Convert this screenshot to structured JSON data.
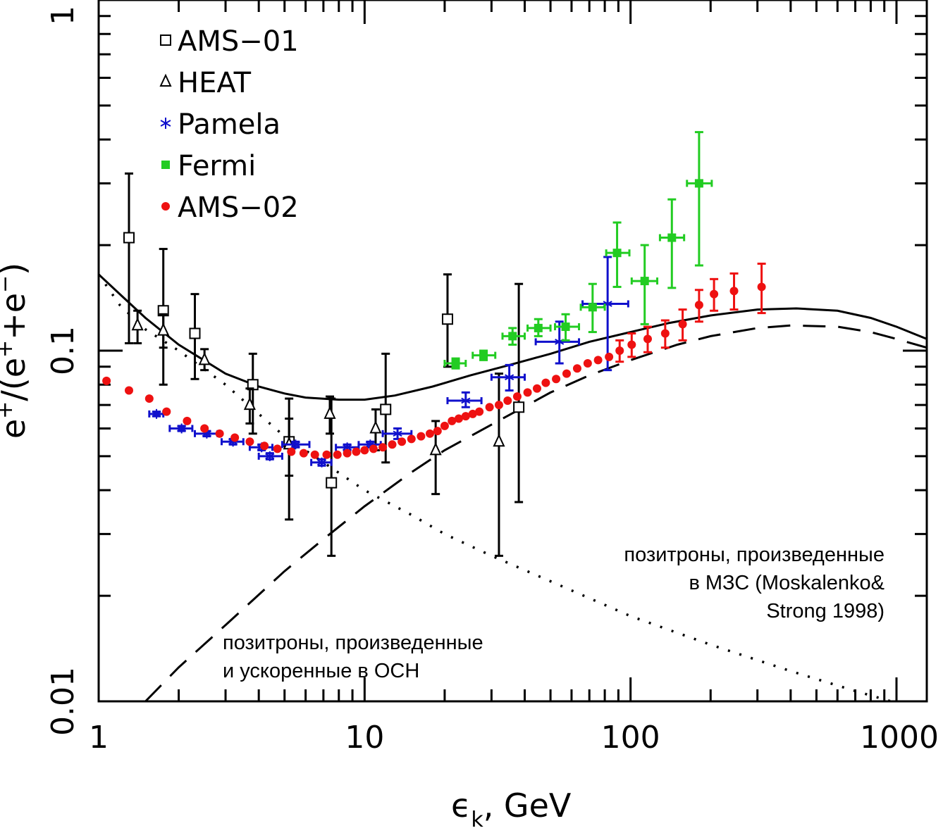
{
  "chart_data": {
    "type": "scatter",
    "xlabel": {
      "main": "ϵ",
      "sub": "k",
      "rest": ",  GeV"
    },
    "ylabel": {
      "a": "e",
      "sa": "+",
      "b": "/(e",
      "sb": "+",
      "c": "+e",
      "sc": "−",
      "d": ")"
    },
    "xscale": "log",
    "yscale": "log",
    "xlim": [
      1,
      1300
    ],
    "ylim": [
      0.01,
      1
    ],
    "x_tick_labels": [
      "1",
      "10",
      "100",
      "1000"
    ],
    "y_tick_labels": [
      "0.01",
      "0.1",
      "1"
    ],
    "legend_position": "top-left",
    "series": [
      {
        "name": "AMS−01",
        "marker": "open-square",
        "color": "#000000",
        "points": [
          {
            "x": 1.3,
            "y": 0.21,
            "ylo": 0.105,
            "yhi": 0.32
          },
          {
            "x": 1.75,
            "y": 0.13,
            "ylo": 0.08,
            "yhi": 0.195
          },
          {
            "x": 2.3,
            "y": 0.112,
            "ylo": 0.083,
            "yhi": 0.145
          },
          {
            "x": 3.8,
            "y": 0.08,
            "ylo": 0.058,
            "yhi": 0.098
          },
          {
            "x": 5.2,
            "y": 0.055,
            "ylo": 0.033,
            "yhi": 0.073
          },
          {
            "x": 7.5,
            "y": 0.042,
            "ylo": 0.026,
            "yhi": 0.073
          },
          {
            "x": 12,
            "y": 0.068,
            "ylo": 0.048,
            "yhi": 0.098
          },
          {
            "x": 20.5,
            "y": 0.123,
            "ylo": 0.09,
            "yhi": 0.165
          },
          {
            "x": 38,
            "y": 0.069,
            "ylo": 0.037,
            "yhi": 0.155
          }
        ]
      },
      {
        "name": "HEAT",
        "marker": "open-triangle",
        "color": "#000000",
        "points": [
          {
            "x": 1.4,
            "y": 0.118,
            "ylo": 0.105,
            "yhi": 0.13
          },
          {
            "x": 1.75,
            "y": 0.114,
            "ylo": 0.102,
            "yhi": 0.127
          },
          {
            "x": 2.5,
            "y": 0.094,
            "ylo": 0.088,
            "yhi": 0.101
          },
          {
            "x": 3.7,
            "y": 0.07,
            "ylo": 0.062,
            "yhi": 0.078
          },
          {
            "x": 5.2,
            "y": 0.054,
            "ylo": 0.044,
            "yhi": 0.064
          },
          {
            "x": 7.4,
            "y": 0.066,
            "ylo": 0.058,
            "yhi": 0.074
          },
          {
            "x": 11,
            "y": 0.06,
            "ylo": 0.052,
            "yhi": 0.068
          },
          {
            "x": 18.5,
            "y": 0.052,
            "ylo": 0.039,
            "yhi": 0.063
          },
          {
            "x": 32,
            "y": 0.055,
            "ylo": 0.026,
            "yhi": 0.086
          }
        ]
      },
      {
        "name": "Pamela",
        "marker": "asterisk",
        "color": "#1010cc",
        "points": [
          {
            "x": 1.65,
            "y": 0.066,
            "xlo": 1.55,
            "xhi": 1.75,
            "ylo": 0.065,
            "yhi": 0.067
          },
          {
            "x": 2.05,
            "y": 0.06,
            "xlo": 1.85,
            "xhi": 2.25,
            "ylo": 0.059,
            "yhi": 0.061
          },
          {
            "x": 2.55,
            "y": 0.058,
            "xlo": 2.3,
            "xhi": 2.8,
            "ylo": 0.057,
            "yhi": 0.059
          },
          {
            "x": 3.2,
            "y": 0.055,
            "xlo": 2.9,
            "xhi": 3.5,
            "ylo": 0.054,
            "yhi": 0.056
          },
          {
            "x": 4.1,
            "y": 0.053,
            "xlo": 3.7,
            "xhi": 4.5,
            "ylo": 0.052,
            "yhi": 0.054
          },
          {
            "x": 4.4,
            "y": 0.05,
            "xlo": 4.0,
            "xhi": 4.9,
            "ylo": 0.049,
            "yhi": 0.051
          },
          {
            "x": 5.5,
            "y": 0.054,
            "xlo": 4.9,
            "xhi": 6.2,
            "ylo": 0.053,
            "yhi": 0.055
          },
          {
            "x": 6.9,
            "y": 0.048,
            "xlo": 6.3,
            "xhi": 7.5,
            "ylo": 0.047,
            "yhi": 0.049
          },
          {
            "x": 8.6,
            "y": 0.053,
            "xlo": 7.8,
            "xhi": 9.5,
            "ylo": 0.052,
            "yhi": 0.054
          },
          {
            "x": 10.5,
            "y": 0.054,
            "xlo": 9.5,
            "xhi": 11.5,
            "ylo": 0.053,
            "yhi": 0.055
          },
          {
            "x": 13.3,
            "y": 0.058,
            "xlo": 11.7,
            "xhi": 15,
            "ylo": 0.056,
            "yhi": 0.06
          },
          {
            "x": 24,
            "y": 0.072,
            "xlo": 20.5,
            "xhi": 27.5,
            "ylo": 0.069,
            "yhi": 0.076
          },
          {
            "x": 35,
            "y": 0.084,
            "xlo": 30,
            "xhi": 40,
            "ylo": 0.077,
            "yhi": 0.091
          },
          {
            "x": 54,
            "y": 0.106,
            "xlo": 44,
            "xhi": 64,
            "ylo": 0.092,
            "yhi": 0.121
          },
          {
            "x": 82,
            "y": 0.136,
            "xlo": 66,
            "xhi": 98,
            "ylo": 0.088,
            "yhi": 0.185
          }
        ]
      },
      {
        "name": "Fermi",
        "marker": "filled-square",
        "color": "#22cc22",
        "points": [
          {
            "x": 22,
            "y": 0.092,
            "xlo": 20,
            "xhi": 24,
            "ylo": 0.089,
            "yhi": 0.095
          },
          {
            "x": 28,
            "y": 0.097,
            "xlo": 25.5,
            "xhi": 31,
            "ylo": 0.094,
            "yhi": 0.1
          },
          {
            "x": 36,
            "y": 0.11,
            "xlo": 33,
            "xhi": 40,
            "ylo": 0.104,
            "yhi": 0.116
          },
          {
            "x": 45,
            "y": 0.116,
            "xlo": 41,
            "xhi": 50,
            "ylo": 0.11,
            "yhi": 0.123
          },
          {
            "x": 57,
            "y": 0.117,
            "xlo": 52,
            "xhi": 64,
            "ylo": 0.107,
            "yhi": 0.127
          },
          {
            "x": 72,
            "y": 0.133,
            "xlo": 65,
            "xhi": 80,
            "ylo": 0.113,
            "yhi": 0.155
          },
          {
            "x": 89,
            "y": 0.19,
            "xlo": 81,
            "xhi": 99,
            "ylo": 0.152,
            "yhi": 0.232
          },
          {
            "x": 113,
            "y": 0.158,
            "xlo": 101,
            "xhi": 126,
            "ylo": 0.119,
            "yhi": 0.2
          },
          {
            "x": 143,
            "y": 0.21,
            "xlo": 129,
            "xhi": 159,
            "ylo": 0.151,
            "yhi": 0.27
          },
          {
            "x": 181,
            "y": 0.3,
            "xlo": 163,
            "xhi": 202,
            "ylo": 0.175,
            "yhi": 0.42
          }
        ]
      },
      {
        "name": "AMS−02",
        "marker": "filled-circle",
        "color": "#ee1111",
        "points": [
          {
            "x": 1.07,
            "y": 0.082
          },
          {
            "x": 1.3,
            "y": 0.077
          },
          {
            "x": 1.55,
            "y": 0.073
          },
          {
            "x": 1.8,
            "y": 0.067
          },
          {
            "x": 2.15,
            "y": 0.063
          },
          {
            "x": 2.5,
            "y": 0.06
          },
          {
            "x": 2.85,
            "y": 0.058
          },
          {
            "x": 3.25,
            "y": 0.0565
          },
          {
            "x": 3.7,
            "y": 0.055
          },
          {
            "x": 4.2,
            "y": 0.0535
          },
          {
            "x": 4.7,
            "y": 0.0525
          },
          {
            "x": 5.3,
            "y": 0.0515
          },
          {
            "x": 5.9,
            "y": 0.051
          },
          {
            "x": 6.5,
            "y": 0.0505
          },
          {
            "x": 7.2,
            "y": 0.0505
          },
          {
            "x": 7.9,
            "y": 0.0505
          },
          {
            "x": 8.6,
            "y": 0.051
          },
          {
            "x": 9.3,
            "y": 0.0515
          },
          {
            "x": 10.0,
            "y": 0.052
          },
          {
            "x": 10.8,
            "y": 0.0525
          },
          {
            "x": 11.7,
            "y": 0.053
          },
          {
            "x": 12.7,
            "y": 0.054
          },
          {
            "x": 13.8,
            "y": 0.055
          },
          {
            "x": 15.0,
            "y": 0.056
          },
          {
            "x": 16.3,
            "y": 0.057
          },
          {
            "x": 17.6,
            "y": 0.058
          },
          {
            "x": 18.8,
            "y": 0.059
          },
          {
            "x": 20.0,
            "y": 0.061
          },
          {
            "x": 21.3,
            "y": 0.063
          },
          {
            "x": 22.6,
            "y": 0.064
          },
          {
            "x": 24.0,
            "y": 0.065
          },
          {
            "x": 25.5,
            "y": 0.066
          },
          {
            "x": 27.0,
            "y": 0.067
          },
          {
            "x": 29.5,
            "y": 0.069
          },
          {
            "x": 32.0,
            "y": 0.07
          },
          {
            "x": 34.5,
            "y": 0.072
          },
          {
            "x": 37.5,
            "y": 0.074
          },
          {
            "x": 41.0,
            "y": 0.076
          },
          {
            "x": 44.5,
            "y": 0.078
          },
          {
            "x": 48.0,
            "y": 0.081
          },
          {
            "x": 52.5,
            "y": 0.083
          },
          {
            "x": 57.5,
            "y": 0.086
          },
          {
            "x": 63.0,
            "y": 0.089
          },
          {
            "x": 69.0,
            "y": 0.092
          },
          {
            "x": 75.5,
            "y": 0.094
          },
          {
            "x": 83.0,
            "y": 0.096
          },
          {
            "x": 91.0,
            "y": 0.1,
            "ylo": 0.093,
            "yhi": 0.107
          },
          {
            "x": 101,
            "y": 0.104,
            "ylo": 0.096,
            "yhi": 0.112
          },
          {
            "x": 116,
            "y": 0.108,
            "ylo": 0.099,
            "yhi": 0.117
          },
          {
            "x": 135,
            "y": 0.112,
            "ylo": 0.102,
            "yhi": 0.122
          },
          {
            "x": 157,
            "y": 0.119,
            "ylo": 0.107,
            "yhi": 0.131
          },
          {
            "x": 181,
            "y": 0.135,
            "ylo": 0.121,
            "yhi": 0.149
          },
          {
            "x": 206,
            "y": 0.145,
            "ylo": 0.13,
            "yhi": 0.16
          },
          {
            "x": 245,
            "y": 0.148,
            "ylo": 0.131,
            "yhi": 0.166
          },
          {
            "x": 311,
            "y": 0.152,
            "ylo": 0.128,
            "yhi": 0.177
          }
        ]
      }
    ],
    "curves": [
      {
        "style": "solid",
        "points": [
          [
            1,
            0.165
          ],
          [
            1.2,
            0.145
          ],
          [
            1.5,
            0.124
          ],
          [
            2,
            0.104
          ],
          [
            3,
            0.086
          ],
          [
            4,
            0.079
          ],
          [
            5,
            0.0755
          ],
          [
            6,
            0.0735
          ],
          [
            8,
            0.0725
          ],
          [
            10,
            0.0725
          ],
          [
            13,
            0.0745
          ],
          [
            18,
            0.079
          ],
          [
            25,
            0.085
          ],
          [
            35,
            0.091
          ],
          [
            50,
            0.098
          ],
          [
            70,
            0.106
          ],
          [
            100,
            0.113
          ],
          [
            140,
            0.12
          ],
          [
            200,
            0.126
          ],
          [
            300,
            0.131
          ],
          [
            420,
            0.132
          ],
          [
            600,
            0.13
          ],
          [
            800,
            0.124
          ],
          [
            1000,
            0.117
          ],
          [
            1300,
            0.108
          ]
        ]
      },
      {
        "style": "dashed",
        "points": [
          [
            1.5,
            0.01
          ],
          [
            2,
            0.0125
          ],
          [
            3,
            0.0165
          ],
          [
            5,
            0.0235
          ],
          [
            7,
            0.029
          ],
          [
            10,
            0.036
          ],
          [
            15,
            0.045
          ],
          [
            20,
            0.052
          ],
          [
            30,
            0.0615
          ],
          [
            50,
            0.076
          ],
          [
            70,
            0.085
          ],
          [
            100,
            0.094
          ],
          [
            150,
            0.104
          ],
          [
            200,
            0.11
          ],
          [
            300,
            0.116
          ],
          [
            400,
            0.118
          ],
          [
            600,
            0.117
          ],
          [
            800,
            0.113
          ],
          [
            1000,
            0.108
          ],
          [
            1300,
            0.102
          ]
        ]
      },
      {
        "style": "dotted",
        "points": [
          [
            1,
            0.165
          ],
          [
            1.2,
            0.135
          ],
          [
            1.5,
            0.115
          ],
          [
            2,
            0.1
          ],
          [
            3,
            0.08
          ],
          [
            4,
            0.066
          ],
          [
            5,
            0.057
          ],
          [
            7,
            0.048
          ],
          [
            10,
            0.04
          ],
          [
            15,
            0.034
          ],
          [
            20,
            0.03
          ],
          [
            30,
            0.026
          ],
          [
            50,
            0.022
          ],
          [
            100,
            0.0175
          ],
          [
            200,
            0.0145
          ],
          [
            400,
            0.0122
          ],
          [
            700,
            0.0107
          ],
          [
            1000,
            0.0099
          ],
          [
            1300,
            0.0093
          ]
        ]
      }
    ],
    "annotations": [
      {
        "lines": [
          "позитроны, произведенные",
          "в МЗС (Moskalenko&",
          "Strong 1998)"
        ]
      },
      {
        "lines": [
          "позитроны, произведенные",
          "и ускоренные в ОСН"
        ]
      }
    ]
  }
}
